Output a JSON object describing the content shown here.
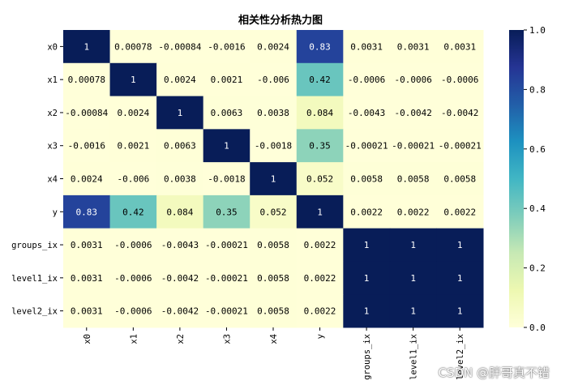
{
  "chart_data": {
    "type": "heatmap",
    "title": "相关性分析热力图",
    "rows": [
      "x0",
      "x1",
      "x2",
      "x3",
      "x4",
      "y",
      "groups_ix",
      "level1_ix",
      "level2_ix"
    ],
    "cols": [
      "x0",
      "x1",
      "x2",
      "x3",
      "x4",
      "y",
      "groups_ix",
      "level1_ix",
      "level2_ix"
    ],
    "values": [
      [
        1,
        0.00078,
        -0.00084,
        -0.0016,
        0.0024,
        0.83,
        0.0031,
        0.0031,
        0.0031
      ],
      [
        0.00078,
        1,
        0.0024,
        0.0021,
        -0.006,
        0.42,
        -0.0006,
        -0.0006,
        -0.0006
      ],
      [
        -0.00084,
        0.0024,
        1,
        0.0063,
        0.0038,
        0.084,
        -0.0043,
        -0.0042,
        -0.0042
      ],
      [
        -0.0016,
        0.0021,
        0.0063,
        1,
        -0.0018,
        0.35,
        -0.00021,
        -0.00021,
        -0.00021
      ],
      [
        0.0024,
        -0.006,
        0.0038,
        -0.0018,
        1,
        0.052,
        0.0058,
        0.0058,
        0.0058
      ],
      [
        0.83,
        0.42,
        0.084,
        0.35,
        0.052,
        1,
        0.0022,
        0.0022,
        0.0022
      ],
      [
        0.0031,
        -0.0006,
        -0.0043,
        -0.00021,
        0.0058,
        0.0022,
        1,
        1,
        1
      ],
      [
        0.0031,
        -0.0006,
        -0.0042,
        -0.00021,
        0.0058,
        0.0022,
        1,
        1,
        1
      ],
      [
        0.0031,
        -0.0006,
        -0.0042,
        -0.00021,
        0.0058,
        0.0022,
        1,
        1,
        1
      ]
    ],
    "labels": [
      [
        "1",
        "0.00078",
        "-0.00084",
        "-0.0016",
        "0.0024",
        "0.83",
        "0.0031",
        "0.0031",
        "0.0031"
      ],
      [
        "0.00078",
        "1",
        "0.0024",
        "0.0021",
        "-0.006",
        "0.42",
        "-0.0006",
        "-0.0006",
        "-0.0006"
      ],
      [
        "-0.00084",
        "0.0024",
        "1",
        "0.0063",
        "0.0038",
        "0.084",
        "-0.0043",
        "-0.0042",
        "-0.0042"
      ],
      [
        "-0.0016",
        "0.0021",
        "0.0063",
        "1",
        "-0.0018",
        "0.35",
        "-0.00021",
        "-0.00021",
        "-0.00021"
      ],
      [
        "0.0024",
        "-0.006",
        "0.0038",
        "-0.0018",
        "1",
        "0.052",
        "0.0058",
        "0.0058",
        "0.0058"
      ],
      [
        "0.83",
        "0.42",
        "0.084",
        "0.35",
        "0.052",
        "1",
        "0.0022",
        "0.0022",
        "0.0022"
      ],
      [
        "0.0031",
        "-0.0006",
        "-0.0043",
        "-0.00021",
        "0.0058",
        "0.0022",
        "1",
        "1",
        "1"
      ],
      [
        "0.0031",
        "-0.0006",
        "-0.0042",
        "-0.00021",
        "0.0058",
        "0.0022",
        "1",
        "1",
        "1"
      ],
      [
        "0.0031",
        "-0.0006",
        "-0.0042",
        "-0.00021",
        "0.0058",
        "0.0022",
        "1",
        "1",
        "1"
      ]
    ],
    "colormap": "YlGnBu",
    "colormap_stops": [
      "#ffffd9",
      "#edf8b1",
      "#c7e9b4",
      "#7fcdbb",
      "#41b6c4",
      "#1d91c0",
      "#225ea8",
      "#253494",
      "#081d58"
    ],
    "vmin": 0,
    "vmax": 1,
    "colorbar_ticks": [
      "0.0",
      "0.2",
      "0.4",
      "0.6",
      "0.8",
      "1.0"
    ],
    "xlabel": "",
    "ylabel": ""
  },
  "watermark": "CSDN @胖哥真不错"
}
